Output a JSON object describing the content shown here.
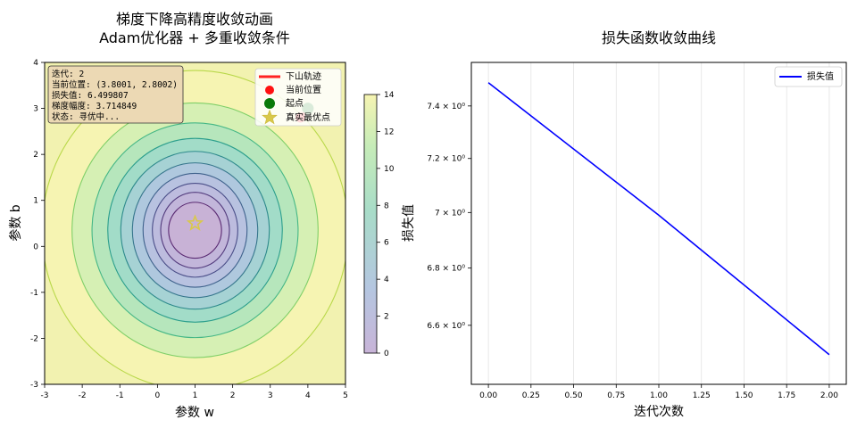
{
  "chart_data": [
    {
      "type": "contour",
      "title": "梯度下降高精度收敛动画",
      "subtitle": "Adam优化器 + 多重收敛条件",
      "xlabel": "参数 w",
      "ylabel": "参数 b",
      "xlim": [
        -3,
        5
      ],
      "ylim": [
        -3,
        4
      ],
      "xticks": [
        "-3",
        "-2",
        "-1",
        "0",
        "1",
        "2",
        "3",
        "4",
        "5"
      ],
      "yticks": [
        "-3",
        "-2",
        "-1",
        "0",
        "1",
        "2",
        "3",
        "4"
      ],
      "colorbar_range": [
        0,
        14
      ],
      "colorbar_ticks": [
        "0",
        "2",
        "4",
        "6",
        "8",
        "10",
        "12",
        "14"
      ],
      "start_point": {
        "w": 4.0,
        "b": 3.0
      },
      "current_point": {
        "w": 3.8001,
        "b": 2.8002
      },
      "optimum": {
        "w": 1.0,
        "b": 0.5
      },
      "trajectory": [
        [
          4.0,
          3.0
        ],
        [
          3.9,
          2.9
        ],
        [
          3.8001,
          2.8002
        ]
      ],
      "legend": [
        "下山轨迹",
        "当前位置",
        "起点",
        "真实最优点"
      ],
      "info_box": [
        "迭代: 2",
        "当前位置: (3.8001, 2.8002)",
        "损失值: 6.499807",
        "梯度幅度: 3.714849",
        "状态: 寻优中..."
      ],
      "colors": {
        "trajectory": "#ff2222",
        "current": "#ff1111",
        "start": "#0a7a0a",
        "optimum": "#d9c84a",
        "info_bg": "#ecd9b4"
      }
    },
    {
      "type": "line",
      "title": "损失函数收敛曲线",
      "xlabel": "迭代次数",
      "ylabel": "损失值",
      "yscale": "log",
      "x": [
        0,
        1,
        2
      ],
      "series": [
        {
          "name": "损失值",
          "values": [
            7.49,
            6.99,
            6.4998
          ],
          "color": "#0000ff"
        }
      ],
      "xlim": [
        -0.1,
        2.1
      ],
      "ylim": [
        6.4,
        7.57
      ],
      "xticks": [
        "0.00",
        "0.25",
        "0.50",
        "0.75",
        "1.00",
        "1.25",
        "1.50",
        "1.75",
        "2.00"
      ],
      "yticks": [
        {
          "value": 6.6,
          "label": "6.6 × 10⁰"
        },
        {
          "value": 6.8,
          "label": "6.8 × 10⁰"
        },
        {
          "value": 7.0,
          "label": "7 × 10⁰"
        },
        {
          "value": 7.2,
          "label": "7.2 × 10⁰"
        },
        {
          "value": 7.4,
          "label": "7.4 × 10⁰"
        }
      ],
      "grid": true,
      "legend_position": "top-right"
    }
  ]
}
